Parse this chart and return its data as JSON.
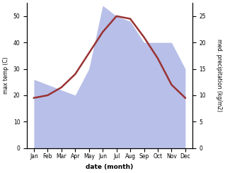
{
  "months": [
    "Jan",
    "Feb",
    "Mar",
    "Apr",
    "May",
    "Jun",
    "Jul",
    "Aug",
    "Sep",
    "Oct",
    "Nov",
    "Dec"
  ],
  "temperature": [
    19,
    20,
    23,
    28,
    36,
    44,
    50,
    49,
    42,
    34,
    24,
    19
  ],
  "precipitation": [
    13,
    12,
    11,
    10,
    15,
    27,
    25,
    24,
    20,
    20,
    20,
    15
  ],
  "temp_color": "#993333",
  "precip_fill_color": "#b8bfe8",
  "temp_ylim": [
    0,
    55
  ],
  "precip_ylim": [
    0,
    27.5
  ],
  "temp_yticks": [
    0,
    10,
    20,
    30,
    40,
    50
  ],
  "precip_yticks": [
    0,
    5,
    10,
    15,
    20,
    25
  ],
  "ylabel_left": "max temp (C)",
  "ylabel_right": "med. precipitation (kg/m2)",
  "xlabel": "date (month)",
  "bg_color": "#ffffff"
}
